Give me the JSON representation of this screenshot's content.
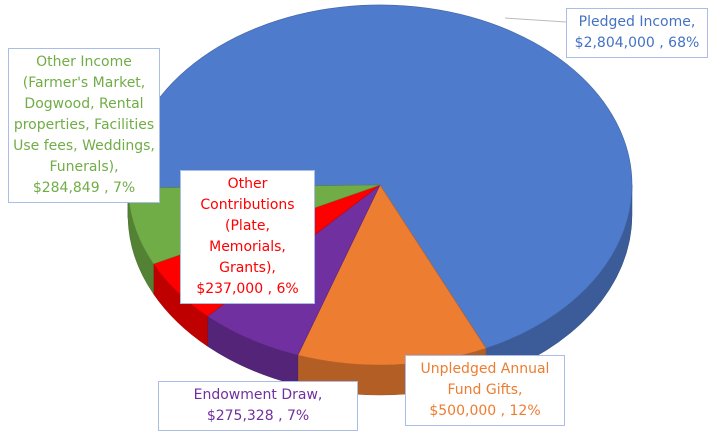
{
  "chart_data": {
    "type": "pie",
    "categories": [
      "Pledged Income,",
      "Unpledged Annual Fund Gifts,",
      "Endowment Draw,",
      "Other Contributions (Plate, Memorials, Grants),",
      "Other Income (Farmer's Market, Dogwood, Rental properties, Facilities Use fees, Weddings, Funerals),"
    ],
    "values": [
      2804000,
      500000,
      275328,
      237000,
      284849
    ],
    "value_labels": [
      "$2,804,000 , 68%",
      "$500,000 , 12%",
      "$275,328 , 7%",
      "$237,000 , 6%",
      "$284,849 , 7%"
    ],
    "colors": [
      "#4f7bcc",
      "#ed7d31",
      "#7030a0",
      "#ff0000",
      "#70ad47"
    ]
  }
}
